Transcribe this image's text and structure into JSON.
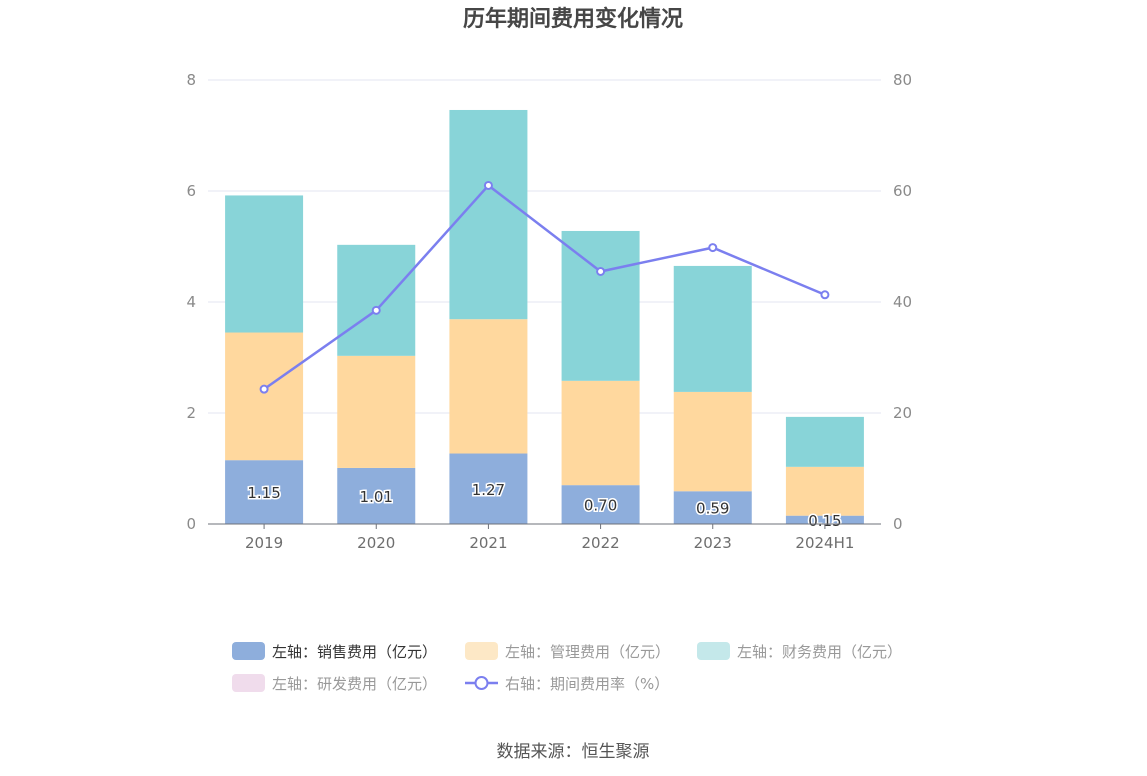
{
  "chart_data": {
    "type": "bar",
    "title": "历年期间费用变化情况",
    "categories": [
      "2019",
      "2020",
      "2021",
      "2022",
      "2023",
      "2024H1"
    ],
    "y_left": {
      "ticks": [
        0,
        2,
        4,
        6,
        8
      ],
      "ylim": [
        0,
        8
      ]
    },
    "y_right": {
      "ticks": [
        0,
        20,
        40,
        60,
        80
      ],
      "ylim": [
        0,
        80
      ]
    },
    "series": [
      {
        "name": "左轴：销售费用（亿元）",
        "kind": "bar",
        "axis": "left",
        "color": "#8eaedc",
        "values": [
          1.15,
          1.01,
          1.27,
          0.7,
          0.59,
          0.15
        ],
        "labels": [
          "1.15",
          "1.01",
          "1.27",
          "0.70",
          "0.59",
          "0.15"
        ]
      },
      {
        "name": "左轴：管理费用（亿元）",
        "kind": "bar",
        "axis": "left",
        "color": "#ffd89e",
        "values": [
          2.3,
          2.02,
          2.42,
          1.88,
          1.79,
          0.88
        ]
      },
      {
        "name": "左轴：财务费用（亿元）",
        "kind": "bar",
        "axis": "left",
        "color": "#88d4d8",
        "values": [
          2.47,
          2.0,
          3.77,
          2.7,
          2.27,
          0.9
        ]
      },
      {
        "name": "左轴：研发费用（亿元）",
        "kind": "bar",
        "axis": "left",
        "color": "#f0dcec",
        "values": [
          0,
          0,
          0,
          0,
          0,
          0
        ]
      },
      {
        "name": "右轴：期间费用率（%）",
        "kind": "line",
        "axis": "right",
        "color": "#7b7fef",
        "values": [
          24.3,
          38.5,
          61.0,
          45.5,
          49.8,
          41.3
        ]
      }
    ],
    "legend": {
      "position": "bottom",
      "text_colors": [
        "#333333",
        "#999999",
        "#999999",
        "#999999",
        "#999999"
      ],
      "swatch_colors": [
        "#8eaedc",
        "#fde8c6",
        "#c4e8ea",
        "#f0dcec",
        "#7b7fef"
      ]
    }
  },
  "source": "数据来源：恒生聚源"
}
